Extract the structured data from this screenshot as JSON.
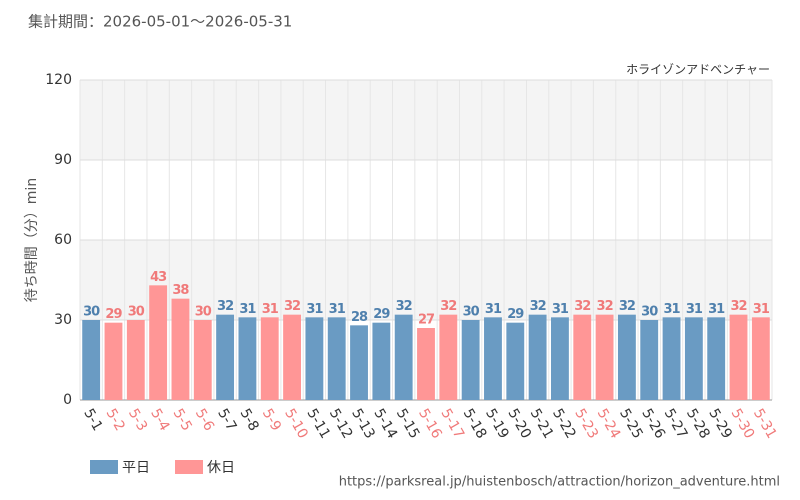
{
  "chart_data": {
    "type": "bar",
    "title": "集計期間：2026-05-01～2026-05-31",
    "subtitle": "ホライゾンアドベンチャー",
    "y_label": "待ち時間（分）min",
    "source": "https://parksreal.jp/huistenbosch/attraction/horizon_adventure.html",
    "categories": [
      "5-1",
      "5-2",
      "5-3",
      "5-4",
      "5-5",
      "5-6",
      "5-7",
      "5-8",
      "5-9",
      "5-10",
      "5-11",
      "5-12",
      "5-13",
      "5-14",
      "5-15",
      "5-16",
      "5-17",
      "5-18",
      "5-19",
      "5-20",
      "5-21",
      "5-22",
      "5-23",
      "5-24",
      "5-25",
      "5-26",
      "5-27",
      "5-28",
      "5-29",
      "5-30",
      "5-31"
    ],
    "series": [
      {
        "name": "平日",
        "color": "#6a9bc3",
        "values": [
          30,
          null,
          null,
          null,
          null,
          null,
          32,
          31,
          null,
          null,
          31,
          31,
          28,
          29,
          32,
          null,
          null,
          30,
          31,
          29,
          32,
          31,
          null,
          null,
          32,
          30,
          31,
          31,
          31,
          null,
          null
        ]
      },
      {
        "name": "休日",
        "color": "#ff9696",
        "values": [
          null,
          29,
          30,
          43,
          38,
          30,
          null,
          null,
          31,
          32,
          null,
          null,
          null,
          null,
          null,
          27,
          32,
          null,
          null,
          null,
          null,
          null,
          32,
          32,
          null,
          null,
          null,
          null,
          null,
          32,
          31
        ]
      }
    ],
    "ylim": [
      0,
      120
    ],
    "yticks": [
      0,
      30,
      60,
      90,
      120
    ],
    "grid": true
  }
}
